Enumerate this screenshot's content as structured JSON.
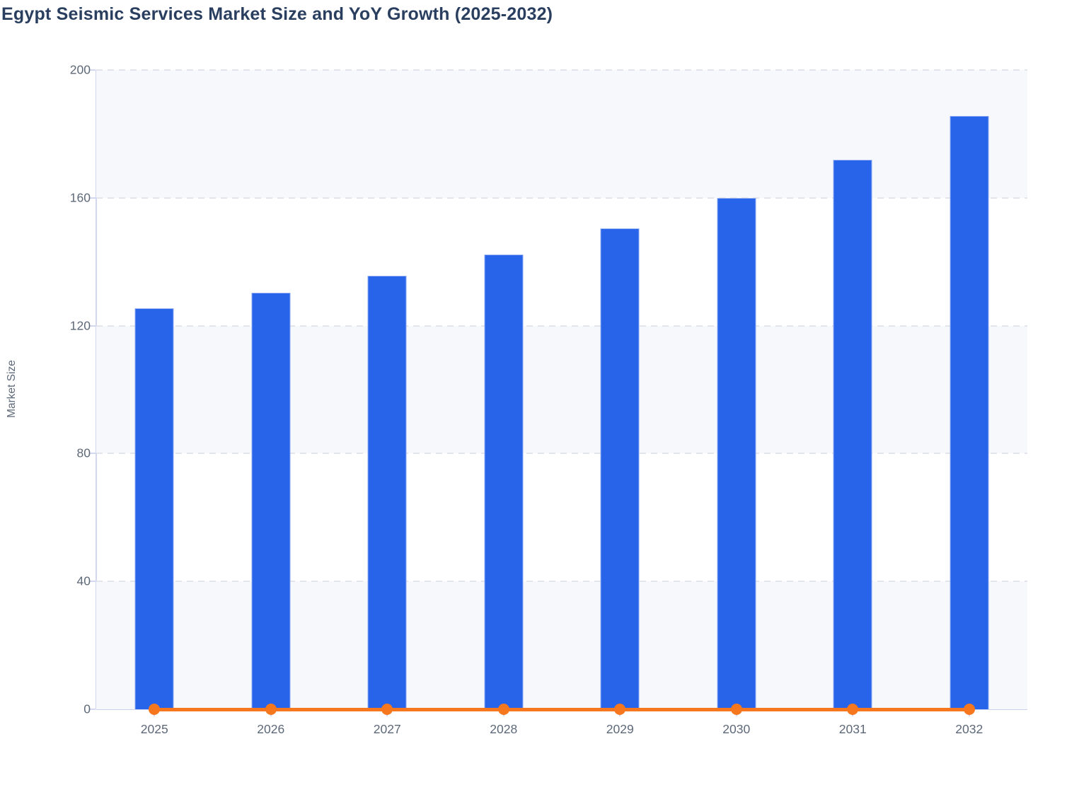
{
  "title": "Egypt Seismic Services Market Size and YoY Growth (2025-2032)",
  "y_axis_title": "Market Size",
  "chart_data": {
    "type": "bar",
    "title": "Egypt Seismic Services Market Size and YoY Growth (2025-2032)",
    "categories": [
      "2025",
      "2026",
      "2027",
      "2028",
      "2029",
      "2030",
      "2031",
      "2032"
    ],
    "series": [
      {
        "name": "Market Size",
        "type": "bar",
        "color": "#2764ea",
        "values": [
          125.5,
          130.3,
          135.6,
          142.3,
          150.4,
          160.0,
          171.9,
          185.7
        ]
      },
      {
        "name": "YoY Growth",
        "type": "line",
        "color": "#f6771e",
        "values": [
          0,
          0,
          0,
          0,
          0,
          0,
          0,
          0
        ]
      }
    ],
    "xlabel": "",
    "ylabel": "Market Size",
    "ylim": [
      0,
      200
    ],
    "yticks": [
      0,
      40,
      80,
      120,
      160,
      200
    ],
    "grid": "horizontal-dashed",
    "plot_background": "alternating-horizontal-bands",
    "legend_position": "none"
  },
  "colors": {
    "bar": "#2764ea",
    "bar_border": "#8fabf2",
    "line": "#f6771e",
    "band": "#f7f8fb",
    "gridline": "#e2e5eb",
    "axis": "#cbd2ec",
    "tick_label": "#5d6878",
    "title": "#2a3f5f",
    "background": "#ffffff"
  }
}
